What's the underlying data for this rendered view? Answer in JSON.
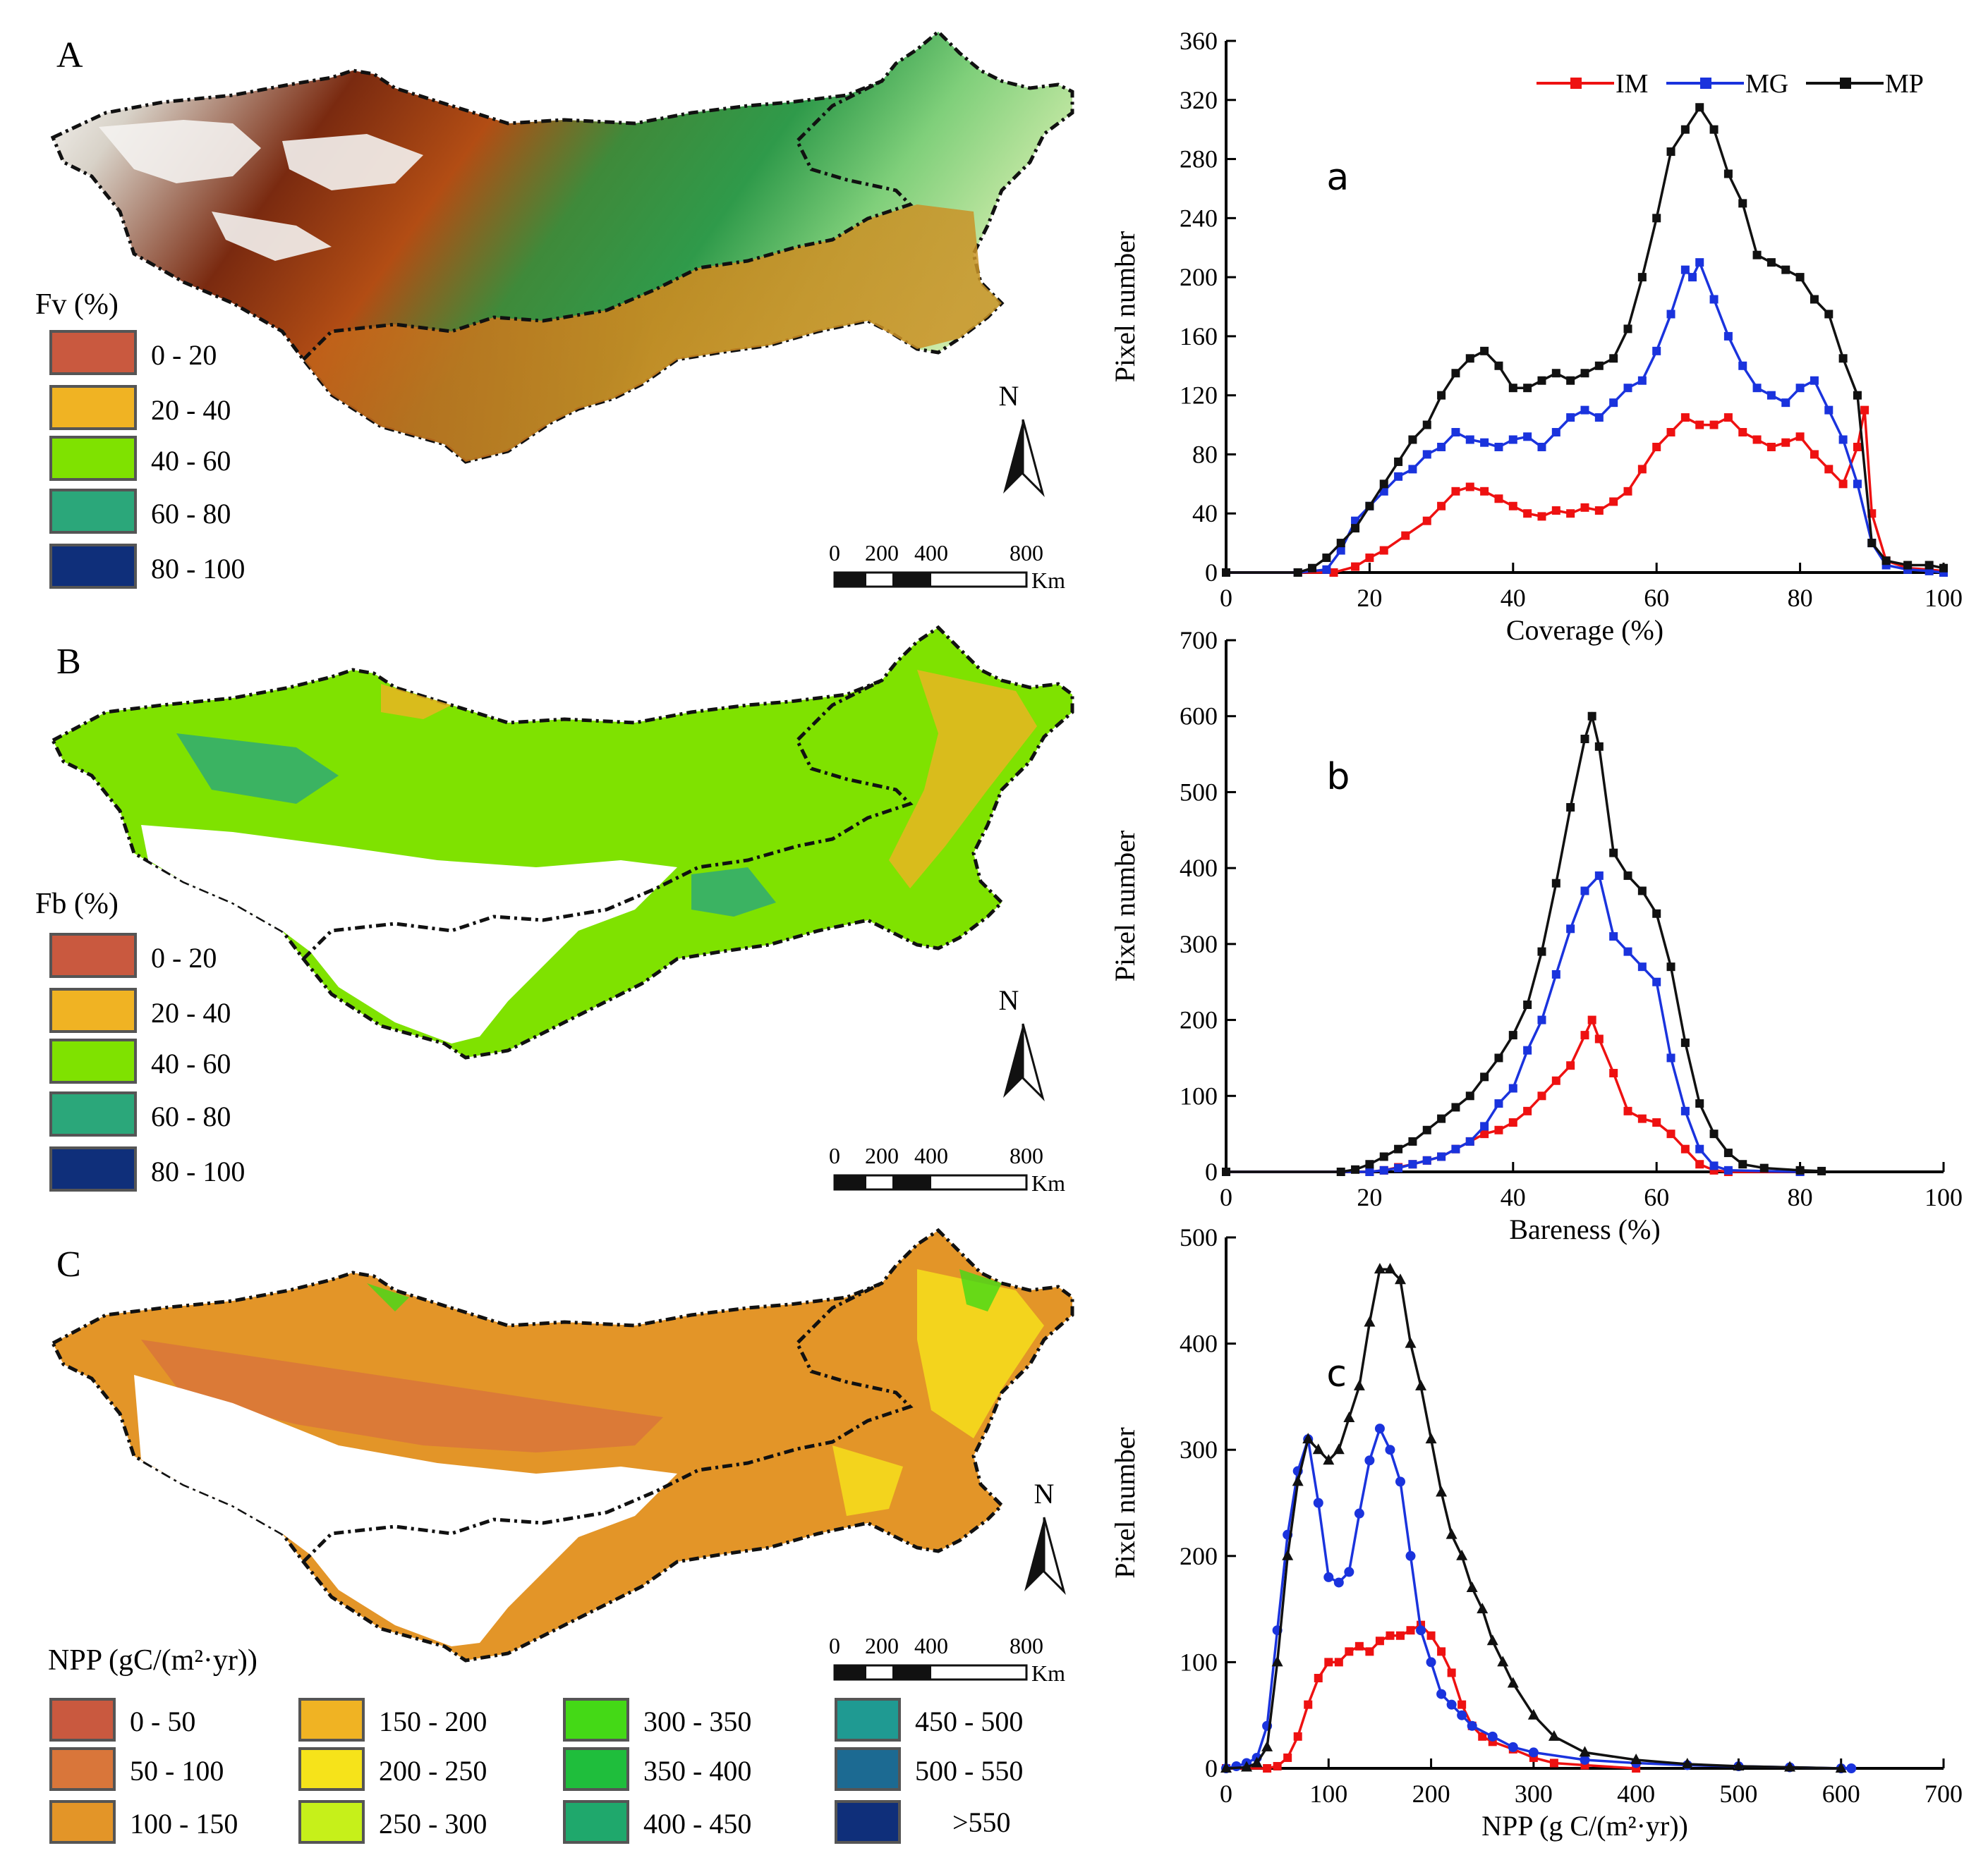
{
  "maps": [
    {
      "panel_label": "A",
      "legend_title": "Fv (%)",
      "legend": [
        {
          "label": "0 - 20",
          "color": "#c9593f"
        },
        {
          "label": "20 - 40",
          "color": "#f0b323"
        },
        {
          "label": "40 - 60",
          "color": "#7fe200"
        },
        {
          "label": "60 - 80",
          "color": "#2ba77a"
        },
        {
          "label": "80 - 100",
          "color": "#0f2f7a"
        }
      ],
      "north": "N",
      "scale_ticks": [
        "0",
        "200",
        "400",
        "800"
      ],
      "scale_unit": "Km"
    },
    {
      "panel_label": "B",
      "legend_title": "Fb (%)",
      "legend": [
        {
          "label": "0 - 20",
          "color": "#c9593f"
        },
        {
          "label": "20 - 40",
          "color": "#f0b323"
        },
        {
          "label": "40 - 60",
          "color": "#7fe200"
        },
        {
          "label": "60 - 80",
          "color": "#2ba77a"
        },
        {
          "label": "80 - 100",
          "color": "#0f2f7a"
        }
      ],
      "north": "N",
      "scale_ticks": [
        "0",
        "200",
        "400",
        "800"
      ],
      "scale_unit": "Km"
    },
    {
      "panel_label": "C",
      "legend_title": "NPP (gC/(m²·yr))",
      "legend": [
        {
          "label": "0 - 50",
          "color": "#c9593f"
        },
        {
          "label": "50 - 100",
          "color": "#d9763a"
        },
        {
          "label": "100 - 150",
          "color": "#e39528"
        },
        {
          "label": "150 - 200",
          "color": "#f0b323"
        },
        {
          "label": "200 - 250",
          "color": "#f6e31a"
        },
        {
          "label": "250 - 300",
          "color": "#c6f01a"
        },
        {
          "label": "300 - 350",
          "color": "#44d916"
        },
        {
          "label": "350 - 400",
          "color": "#1fbe3c"
        },
        {
          "label": "400 - 450",
          "color": "#1fa86c"
        },
        {
          "label": "450 - 500",
          "color": "#1f9a92"
        },
        {
          "label": ">550",
          "color": "#0f2f7a"
        },
        {
          "label": "500 - 550",
          "color": "#1c6a92"
        }
      ],
      "north": "N",
      "scale_ticks": [
        "0",
        "200",
        "400",
        "800"
      ],
      "scale_unit": "Km"
    }
  ],
  "chart_data": [
    {
      "type": "line",
      "panel_label": "a",
      "xlabel": "Coverage (%)",
      "ylabel": "Pixel number",
      "xlim": [
        0,
        100
      ],
      "ylim": [
        0,
        360
      ],
      "xticks": [
        0,
        20,
        40,
        60,
        80,
        100
      ],
      "yticks": [
        0,
        40,
        80,
        120,
        160,
        200,
        240,
        280,
        320,
        360
      ],
      "legend": [
        "IM",
        "MG",
        "MP"
      ],
      "series": [
        {
          "name": "IM",
          "color": "#ee1111",
          "marker": "square",
          "x": [
            0,
            10,
            15,
            18,
            20,
            22,
            25,
            28,
            30,
            32,
            34,
            36,
            38,
            40,
            42,
            44,
            46,
            48,
            50,
            52,
            54,
            56,
            58,
            60,
            62,
            64,
            66,
            68,
            70,
            72,
            74,
            76,
            78,
            80,
            82,
            84,
            86,
            88,
            89,
            90,
            92,
            95,
            98,
            100
          ],
          "y": [
            0,
            0,
            0,
            4,
            10,
            15,
            25,
            35,
            45,
            55,
            58,
            55,
            50,
            45,
            40,
            38,
            42,
            40,
            44,
            42,
            48,
            55,
            70,
            85,
            95,
            105,
            100,
            100,
            105,
            95,
            90,
            85,
            88,
            92,
            80,
            70,
            60,
            85,
            110,
            40,
            8,
            3,
            2,
            1
          ]
        },
        {
          "name": "MG",
          "color": "#1a33dd",
          "marker": "square",
          "x": [
            0,
            10,
            14,
            16,
            18,
            20,
            22,
            24,
            26,
            28,
            30,
            32,
            34,
            36,
            38,
            40,
            42,
            44,
            46,
            48,
            50,
            52,
            54,
            56,
            58,
            60,
            62,
            64,
            65,
            66,
            68,
            70,
            72,
            74,
            76,
            78,
            80,
            82,
            84,
            86,
            88,
            90,
            92,
            95,
            98,
            100
          ],
          "y": [
            0,
            0,
            2,
            15,
            35,
            45,
            55,
            65,
            70,
            80,
            85,
            95,
            90,
            88,
            85,
            90,
            92,
            85,
            95,
            105,
            110,
            105,
            115,
            125,
            130,
            150,
            175,
            205,
            200,
            210,
            185,
            160,
            140,
            125,
            120,
            115,
            125,
            130,
            110,
            90,
            60,
            20,
            5,
            2,
            1,
            0
          ]
        },
        {
          "name": "MP",
          "color": "#111111",
          "marker": "square",
          "x": [
            0,
            10,
            12,
            14,
            16,
            18,
            20,
            22,
            24,
            26,
            28,
            30,
            32,
            34,
            36,
            38,
            40,
            42,
            44,
            46,
            48,
            50,
            52,
            54,
            56,
            58,
            60,
            62,
            64,
            66,
            68,
            70,
            72,
            74,
            76,
            78,
            80,
            82,
            84,
            86,
            88,
            90,
            92,
            95,
            98,
            100
          ],
          "y": [
            0,
            0,
            3,
            10,
            20,
            30,
            45,
            60,
            75,
            90,
            100,
            120,
            135,
            145,
            150,
            140,
            125,
            125,
            130,
            135,
            130,
            135,
            140,
            145,
            165,
            200,
            240,
            285,
            300,
            315,
            300,
            270,
            250,
            215,
            210,
            205,
            200,
            185,
            175,
            145,
            120,
            20,
            8,
            5,
            5,
            3
          ]
        }
      ]
    },
    {
      "type": "line",
      "panel_label": "b",
      "xlabel": "Bareness (%)",
      "ylabel": "Pixel number",
      "xlim": [
        0,
        100
      ],
      "ylim": [
        0,
        700
      ],
      "xticks": [
        0,
        20,
        40,
        60,
        80,
        100
      ],
      "yticks": [
        0,
        100,
        200,
        300,
        400,
        500,
        600,
        700
      ],
      "series": [
        {
          "name": "IM",
          "color": "#ee1111",
          "marker": "square",
          "x": [
            0,
            20,
            22,
            24,
            26,
            28,
            30,
            32,
            34,
            36,
            38,
            40,
            42,
            44,
            46,
            48,
            50,
            51,
            52,
            54,
            56,
            58,
            60,
            62,
            64,
            66,
            68,
            70,
            80
          ],
          "y": [
            0,
            0,
            2,
            6,
            10,
            15,
            20,
            30,
            40,
            50,
            55,
            65,
            80,
            100,
            120,
            140,
            180,
            200,
            175,
            130,
            80,
            70,
            65,
            50,
            30,
            10,
            2,
            0,
            0
          ]
        },
        {
          "name": "MG",
          "color": "#1a33dd",
          "marker": "square",
          "x": [
            0,
            20,
            22,
            24,
            26,
            28,
            30,
            32,
            34,
            36,
            38,
            40,
            42,
            44,
            46,
            48,
            50,
            52,
            54,
            56,
            58,
            60,
            62,
            64,
            66,
            68,
            70,
            80
          ],
          "y": [
            0,
            0,
            2,
            5,
            10,
            15,
            20,
            30,
            40,
            60,
            90,
            110,
            160,
            200,
            260,
            320,
            370,
            390,
            310,
            290,
            270,
            250,
            150,
            80,
            30,
            8,
            2,
            0
          ]
        },
        {
          "name": "MP",
          "color": "#111111",
          "marker": "square",
          "x": [
            0,
            16,
            18,
            20,
            22,
            24,
            26,
            28,
            30,
            32,
            34,
            36,
            38,
            40,
            42,
            44,
            46,
            48,
            50,
            51,
            52,
            54,
            56,
            58,
            60,
            62,
            64,
            66,
            68,
            70,
            72,
            75,
            80,
            83
          ],
          "y": [
            0,
            0,
            3,
            10,
            20,
            30,
            40,
            55,
            70,
            85,
            100,
            125,
            150,
            180,
            220,
            290,
            380,
            480,
            570,
            600,
            560,
            420,
            390,
            370,
            340,
            270,
            170,
            90,
            50,
            25,
            10,
            5,
            2,
            1
          ]
        }
      ]
    },
    {
      "type": "line",
      "panel_label": "c",
      "xlabel": "NPP (g C/(m²·yr))",
      "ylabel": "Pixel number",
      "xlim": [
        0,
        700
      ],
      "ylim": [
        0,
        500
      ],
      "xticks": [
        0,
        100,
        200,
        300,
        400,
        500,
        600,
        700
      ],
      "yticks": [
        0,
        100,
        200,
        300,
        400,
        500
      ],
      "series": [
        {
          "name": "IM",
          "color": "#ee1111",
          "marker": "square",
          "x": [
            0,
            40,
            50,
            60,
            70,
            80,
            90,
            100,
            110,
            120,
            130,
            140,
            150,
            160,
            170,
            180,
            190,
            200,
            210,
            220,
            230,
            240,
            250,
            260,
            280,
            300,
            320,
            350,
            400
          ],
          "y": [
            0,
            0,
            2,
            10,
            30,
            60,
            85,
            100,
            100,
            110,
            115,
            110,
            120,
            125,
            125,
            130,
            135,
            125,
            110,
            90,
            60,
            40,
            30,
            25,
            18,
            10,
            5,
            3,
            0
          ]
        },
        {
          "name": "MG",
          "color": "#1a33dd",
          "marker": "circle",
          "x": [
            0,
            10,
            20,
            30,
            40,
            50,
            60,
            70,
            80,
            90,
            100,
            110,
            120,
            130,
            140,
            150,
            160,
            170,
            180,
            190,
            200,
            210,
            220,
            230,
            240,
            260,
            280,
            300,
            350,
            400,
            450,
            500,
            550,
            600,
            610
          ],
          "y": [
            0,
            2,
            5,
            10,
            40,
            130,
            220,
            280,
            310,
            250,
            180,
            175,
            185,
            240,
            290,
            320,
            300,
            270,
            200,
            130,
            100,
            70,
            60,
            50,
            40,
            30,
            20,
            15,
            8,
            5,
            3,
            2,
            1,
            0,
            0
          ]
        },
        {
          "name": "MP",
          "color": "#111111",
          "marker": "triangle",
          "x": [
            0,
            20,
            30,
            40,
            50,
            60,
            70,
            80,
            90,
            100,
            110,
            120,
            130,
            140,
            150,
            160,
            170,
            180,
            190,
            200,
            210,
            220,
            230,
            240,
            250,
            260,
            270,
            280,
            300,
            320,
            350,
            400,
            450,
            500,
            550,
            600
          ],
          "y": [
            0,
            1,
            5,
            20,
            100,
            200,
            270,
            310,
            300,
            290,
            300,
            330,
            360,
            420,
            470,
            470,
            460,
            400,
            360,
            310,
            260,
            220,
            200,
            170,
            150,
            120,
            100,
            80,
            50,
            30,
            15,
            8,
            4,
            2,
            1,
            0
          ]
        }
      ]
    }
  ]
}
